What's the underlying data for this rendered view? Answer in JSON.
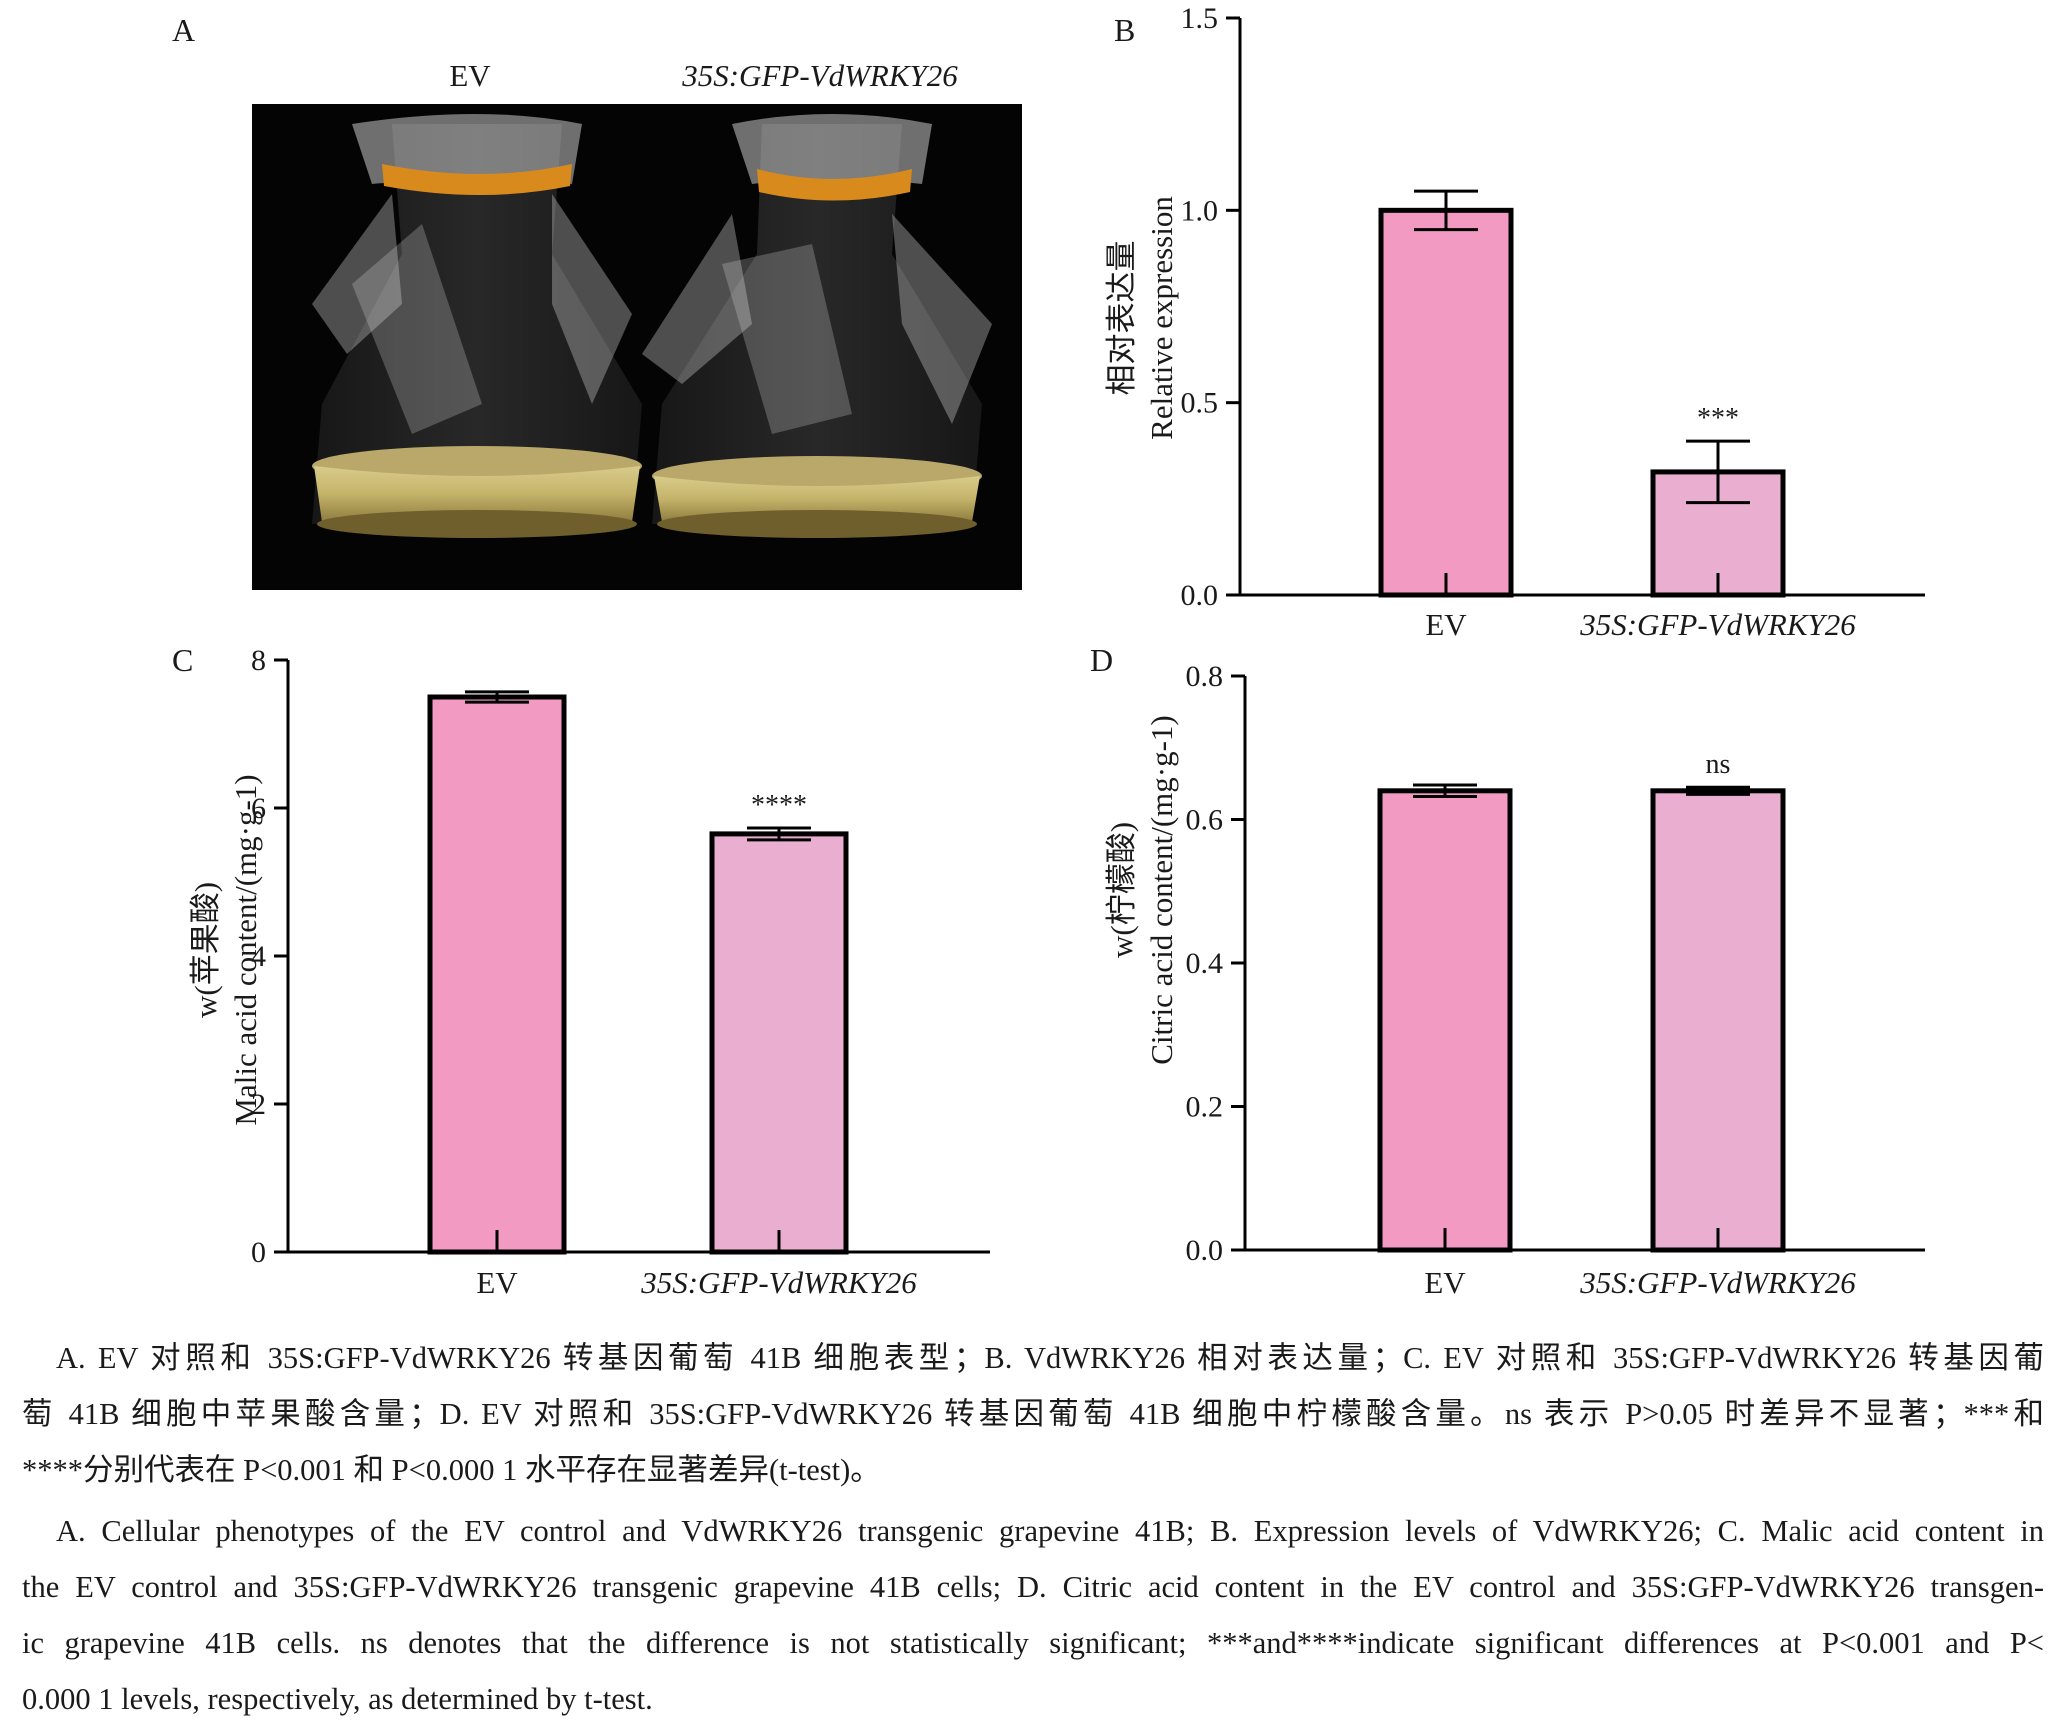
{
  "panelA": {
    "letter": "A",
    "labels": [
      "EV",
      "35S:GFP-VdWRKY26"
    ],
    "photo_description_icons": [
      "flask-icon",
      "flask-icon"
    ]
  },
  "colors": {
    "ev_bar": "#f39ac2",
    "transgenic_bar": "#e9aed0",
    "axis": "#000000"
  },
  "chart_data": [
    {
      "panel": "B",
      "type": "bar",
      "categories": [
        "EV",
        "35S:GFP-VdWRKY26"
      ],
      "values": [
        1.0,
        0.32
      ],
      "errors": [
        0.05,
        0.08
      ],
      "significance": [
        "",
        "***"
      ],
      "ylabel_cn": "相对表达量",
      "ylabel_en": "Relative expression",
      "ylim": [
        0,
        1.5
      ],
      "yticks": [
        "0.0",
        "0.5",
        "1.0",
        "1.5"
      ],
      "grid": false
    },
    {
      "panel": "C",
      "type": "bar",
      "categories": [
        "EV",
        "35S:GFP-VdWRKY26"
      ],
      "values": [
        7.5,
        5.65
      ],
      "errors": [
        0.07,
        0.08
      ],
      "significance": [
        "",
        "****"
      ],
      "ylabel_cn": "w(苹果酸)",
      "ylabel_en": "Malic acid content/(mg·g-1)",
      "ylim": [
        0,
        8
      ],
      "yticks": [
        "0",
        "2",
        "4",
        "6",
        "8"
      ],
      "grid": false
    },
    {
      "panel": "D",
      "type": "bar",
      "categories": [
        "EV",
        "35S:GFP-VdWRKY26"
      ],
      "values": [
        0.64,
        0.64
      ],
      "errors": [
        0.008,
        0.005
      ],
      "significance": [
        "",
        "ns"
      ],
      "ylabel_cn": "w(柠檬酸)",
      "ylabel_en": "Citric acid content/(mg·g-1)",
      "ylim": [
        0,
        0.8
      ],
      "yticks": [
        "0.0",
        "0.2",
        "0.4",
        "0.6",
        "0.8"
      ],
      "grid": false
    }
  ],
  "caption_cn": [
    "A. EV 对照和 35S:GFP-VdWRKY26 转基因葡萄 41B 细胞表型；B. VdWRKY26 相对表达量；C. EV 对照和 35S:GFP-VdWRKY26 转基因葡",
    "萄 41B 细胞中苹果酸含量；D. EV 对照和 35S:GFP-VdWRKY26 转基因葡萄 41B 细胞中柠檬酸含量。ns 表示 P>0.05 时差异不显著；***和",
    "****分别代表在 P<0.001 和 P<0.000 1 水平存在显著差异(t-test)。"
  ],
  "caption_en": [
    "A. Cellular phenotypes of the EV control and VdWRKY26 transgenic grapevine 41B; B. Expression levels of VdWRKY26; C. Malic acid content in",
    "the EV control and 35S:GFP-VdWRKY26 transgenic grapevine 41B cells; D. Citric acid content in the EV control and 35S:GFP-VdWRKY26 transgen-",
    "ic grapevine 41B cells. ns denotes that the difference is not statistically significant; ***and****indicate significant differences at P<0.001 and P<",
    "0.000 1 levels, respectively, as determined by t-test."
  ]
}
